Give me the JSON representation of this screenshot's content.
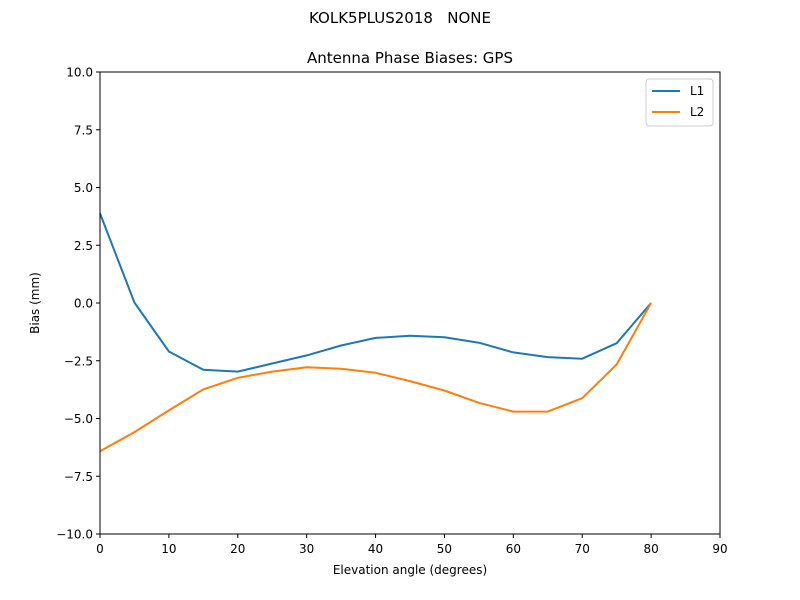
{
  "figure": {
    "suptitle": "KOLK5PLUS2018   NONE",
    "title": "Antenna Phase Biases: GPS"
  },
  "chart_data": {
    "type": "line",
    "suptitle": "KOLK5PLUS2018   NONE",
    "title": "Antenna Phase Biases: GPS",
    "xlabel": "Elevation angle (degrees)",
    "ylabel": "Bias (mm)",
    "xlim": [
      0,
      90
    ],
    "ylim": [
      -10,
      10
    ],
    "xticks": [
      0,
      10,
      20,
      30,
      40,
      50,
      60,
      70,
      80,
      90
    ],
    "yticks": [
      -10.0,
      -7.5,
      -5.0,
      -2.5,
      0.0,
      2.5,
      5.0,
      7.5,
      10.0
    ],
    "ytick_labels": [
      "−10.0",
      "−7.5",
      "−5.0",
      "−2.5",
      "0.0",
      "2.5",
      "5.0",
      "7.5",
      "10.0"
    ],
    "grid": false,
    "legend_position": "upper right",
    "x": [
      0,
      5,
      10,
      15,
      20,
      25,
      30,
      35,
      40,
      45,
      50,
      55,
      60,
      65,
      70,
      75,
      80
    ],
    "series": [
      {
        "name": "L1",
        "color": "#1f77b4",
        "values": [
          3.88,
          0.02,
          -2.1,
          -2.89,
          -2.97,
          -2.62,
          -2.27,
          -1.84,
          -1.51,
          -1.42,
          -1.48,
          -1.72,
          -2.14,
          -2.34,
          -2.41,
          -1.74,
          0.0
        ]
      },
      {
        "name": "L2",
        "color": "#ff7f0e",
        "values": [
          -6.42,
          -5.59,
          -4.65,
          -3.74,
          -3.24,
          -2.97,
          -2.78,
          -2.85,
          -3.02,
          -3.38,
          -3.79,
          -4.32,
          -4.7,
          -4.7,
          -4.12,
          -2.66,
          0.0
        ]
      }
    ]
  }
}
